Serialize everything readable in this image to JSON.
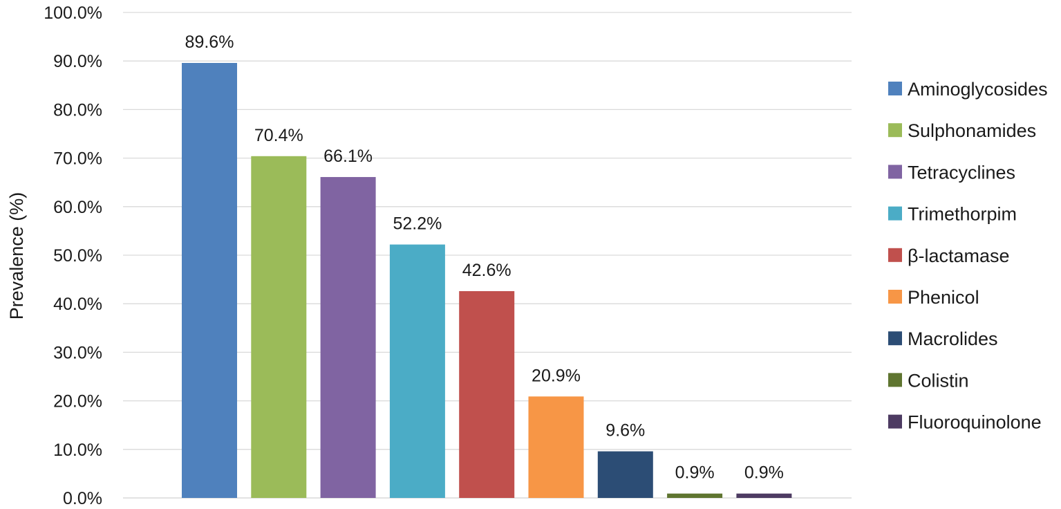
{
  "chart_data": {
    "type": "bar",
    "title": "",
    "xlabel": "",
    "ylabel": "Prevalence (%)",
    "ylim": [
      0,
      100
    ],
    "y_ticks": [
      "0.0%",
      "10.0%",
      "20.0%",
      "30.0%",
      "40.0%",
      "50.0%",
      "60.0%",
      "70.0%",
      "80.0%",
      "90.0%",
      "100.0%"
    ],
    "grid": true,
    "legend_position": "right",
    "categories": [
      "Aminoglycosides",
      "Sulphonamides",
      "Tetracyclines",
      "Trimethorpim",
      "β-lactamase",
      "Phenicol",
      "Macrolides",
      "Colistin",
      "Fluoroquinolone"
    ],
    "values": [
      89.6,
      70.4,
      66.1,
      52.2,
      42.6,
      20.9,
      9.6,
      0.9,
      0.9
    ],
    "data_labels": [
      "89.6%",
      "70.4%",
      "66.1%",
      "52.2%",
      "42.6%",
      "20.9%",
      "9.6%",
      "0.9%",
      "0.9%"
    ],
    "colors": [
      "#4f81bd",
      "#9bbb59",
      "#8064a2",
      "#4bacc6",
      "#c0504d",
      "#f79646",
      "#2c4d75",
      "#5f7530",
      "#4d3b62"
    ]
  }
}
